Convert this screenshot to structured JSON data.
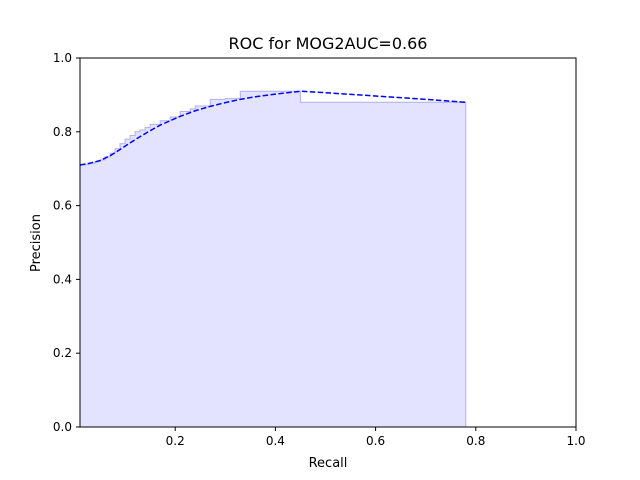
{
  "chart_data": {
    "type": "area",
    "title": "ROC for MOG2AUC=0.66",
    "xlabel": "Recall",
    "ylabel": "Precision",
    "xlim": [
      0.01,
      1.0
    ],
    "ylim": [
      0.0,
      1.0
    ],
    "xticks": [
      "0.2",
      "0.4",
      "0.6",
      "0.8",
      "1.0"
    ],
    "yticks": [
      "0.0",
      "0.2",
      "0.4",
      "0.6",
      "0.8",
      "1.0"
    ],
    "grid": false,
    "series": [
      {
        "kind": "step_area",
        "color": "#0000ff",
        "fill_color": "#e3e3ff",
        "edge_color": "#b0b0ee",
        "x": [
          0.01,
          0.02,
          0.03,
          0.04,
          0.05,
          0.06,
          0.07,
          0.08,
          0.09,
          0.1,
          0.11,
          0.12,
          0.13,
          0.14,
          0.15,
          0.17,
          0.19,
          0.21,
          0.23,
          0.24,
          0.27,
          0.3,
          0.33,
          0.45,
          0.78
        ],
        "values": [
          0.71,
          0.712,
          0.715,
          0.719,
          0.724,
          0.732,
          0.742,
          0.754,
          0.768,
          0.78,
          0.79,
          0.8,
          0.805,
          0.812,
          0.82,
          0.83,
          0.84,
          0.855,
          0.862,
          0.87,
          0.888,
          0.89,
          0.91,
          0.88,
          0.88
        ]
      },
      {
        "kind": "dashed_line",
        "color": "#0000ff",
        "x": [
          0.01,
          0.03,
          0.05,
          0.07,
          0.09,
          0.11,
          0.13,
          0.15,
          0.17,
          0.19,
          0.21,
          0.24,
          0.27,
          0.3,
          0.33,
          0.36,
          0.4,
          0.45,
          0.5,
          0.6,
          0.7,
          0.78
        ],
        "values": [
          0.71,
          0.715,
          0.722,
          0.735,
          0.752,
          0.77,
          0.787,
          0.803,
          0.818,
          0.83,
          0.842,
          0.857,
          0.869,
          0.879,
          0.888,
          0.895,
          0.902,
          0.91,
          0.906,
          0.897,
          0.888,
          0.88
        ]
      }
    ]
  }
}
